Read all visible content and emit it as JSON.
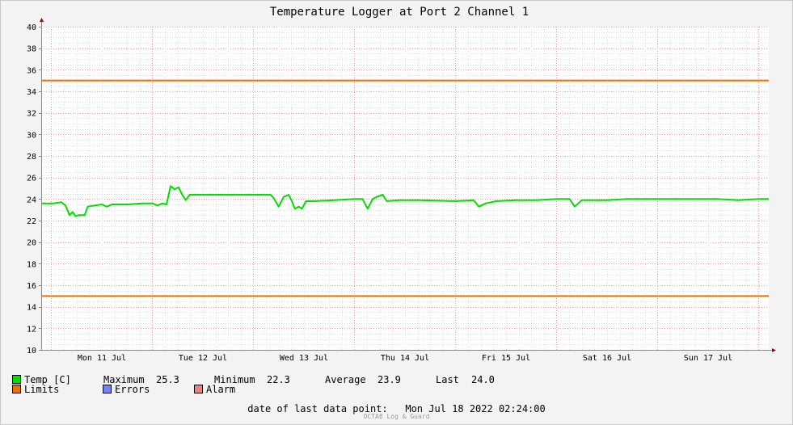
{
  "chart_data": {
    "type": "line",
    "title": "Temperature Logger at Port 2 Channel 1",
    "ylim": [
      10,
      40
    ],
    "y_ticks": [
      10,
      12,
      14,
      16,
      18,
      20,
      22,
      24,
      26,
      28,
      30,
      32,
      34,
      36,
      38,
      40
    ],
    "x_labels": [
      "Mon 11 Jul",
      "Tue 12 Jul",
      "Wed 13 Jul",
      "Thu 14 Jul",
      "Fri 15 Jul",
      "Sat 16 Jul",
      "Sun 17 Jul"
    ],
    "x_range_days": [
      10.9,
      18.1
    ],
    "grid": true,
    "legend_position": "bottom",
    "limits": {
      "upper": 35,
      "lower": 15
    },
    "series": [
      {
        "name": "Temp [C]",
        "color": "#00e000",
        "points": [
          [
            10.9,
            23.6
          ],
          [
            11.02,
            23.6
          ],
          [
            11.1,
            23.7
          ],
          [
            11.14,
            23.4
          ],
          [
            11.18,
            22.5
          ],
          [
            11.21,
            22.8
          ],
          [
            11.24,
            22.4
          ],
          [
            11.27,
            22.5
          ],
          [
            11.3,
            22.5
          ],
          [
            11.33,
            22.5
          ],
          [
            11.36,
            23.3
          ],
          [
            11.43,
            23.4
          ],
          [
            11.5,
            23.5
          ],
          [
            11.55,
            23.3
          ],
          [
            11.6,
            23.5
          ],
          [
            11.75,
            23.5
          ],
          [
            11.9,
            23.6
          ],
          [
            12.0,
            23.6
          ],
          [
            12.05,
            23.4
          ],
          [
            12.1,
            23.6
          ],
          [
            12.14,
            23.5
          ],
          [
            12.18,
            25.2
          ],
          [
            12.22,
            24.9
          ],
          [
            12.26,
            25.1
          ],
          [
            12.29,
            24.5
          ],
          [
            12.33,
            23.9
          ],
          [
            12.37,
            24.4
          ],
          [
            12.5,
            24.4
          ],
          [
            13.0,
            24.4
          ],
          [
            13.17,
            24.4
          ],
          [
            13.2,
            24.1
          ],
          [
            13.25,
            23.3
          ],
          [
            13.3,
            24.2
          ],
          [
            13.35,
            24.4
          ],
          [
            13.38,
            23.8
          ],
          [
            13.41,
            23.1
          ],
          [
            13.45,
            23.3
          ],
          [
            13.48,
            23.1
          ],
          [
            13.52,
            23.8
          ],
          [
            13.6,
            23.8
          ],
          [
            13.8,
            23.9
          ],
          [
            14.0,
            24.0
          ],
          [
            14.08,
            24.0
          ],
          [
            14.13,
            23.1
          ],
          [
            14.18,
            24.0
          ],
          [
            14.22,
            24.2
          ],
          [
            14.28,
            24.4
          ],
          [
            14.32,
            23.8
          ],
          [
            14.45,
            23.9
          ],
          [
            14.65,
            23.9
          ],
          [
            15.0,
            23.8
          ],
          [
            15.18,
            23.9
          ],
          [
            15.23,
            23.3
          ],
          [
            15.3,
            23.6
          ],
          [
            15.4,
            23.8
          ],
          [
            15.6,
            23.9
          ],
          [
            15.8,
            23.9
          ],
          [
            16.0,
            24.0
          ],
          [
            16.13,
            24.0
          ],
          [
            16.18,
            23.3
          ],
          [
            16.25,
            23.9
          ],
          [
            16.5,
            23.9
          ],
          [
            16.7,
            24.0
          ],
          [
            17.0,
            24.0
          ],
          [
            17.4,
            24.0
          ],
          [
            17.6,
            24.0
          ],
          [
            17.8,
            23.9
          ],
          [
            18.0,
            24.0
          ],
          [
            18.1,
            24.0
          ]
        ]
      }
    ]
  },
  "legend": {
    "temp": {
      "label": "Temp [C]",
      "color": "#00e000"
    },
    "stats": {
      "maximum_label": "Maximum",
      "maximum_value": "25.3",
      "minimum_label": "Minimum",
      "minimum_value": "22.3",
      "average_label": "Average",
      "average_value": "23.9",
      "last_label": "Last",
      "last_value": "24.0"
    },
    "limits": {
      "label": "Limits",
      "color": "#f07000"
    },
    "errors": {
      "label": "Errors",
      "color": "#6b86ff"
    },
    "alarm": {
      "label": "Alarm",
      "color": "#f38080"
    }
  },
  "footer": {
    "label": "date of last data point:",
    "value": "Mon Jul 18 2022 02:24:00",
    "credit": "OCTA8 Log & Guard"
  }
}
